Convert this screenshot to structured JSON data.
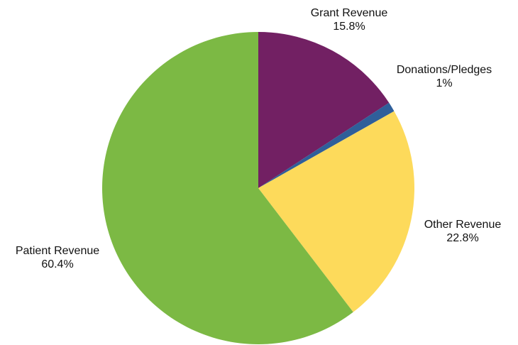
{
  "chart_data": {
    "type": "pie",
    "start_angle_deg": 90,
    "direction": "clockwise",
    "slices": [
      {
        "label": "Grant Revenue",
        "value": 15.8,
        "value_label": "15.8%",
        "color": "#722063"
      },
      {
        "label": "Donations/Pledges",
        "value": 1,
        "value_label": "1%",
        "color": "#2f5f9a"
      },
      {
        "label": "Other Revenue",
        "value": 22.8,
        "value_label": "22.8%",
        "color": "#fdda5b"
      },
      {
        "label": "Patient Revenue",
        "value": 60.4,
        "value_label": "60.4%",
        "color": "#7cb944"
      }
    ]
  }
}
